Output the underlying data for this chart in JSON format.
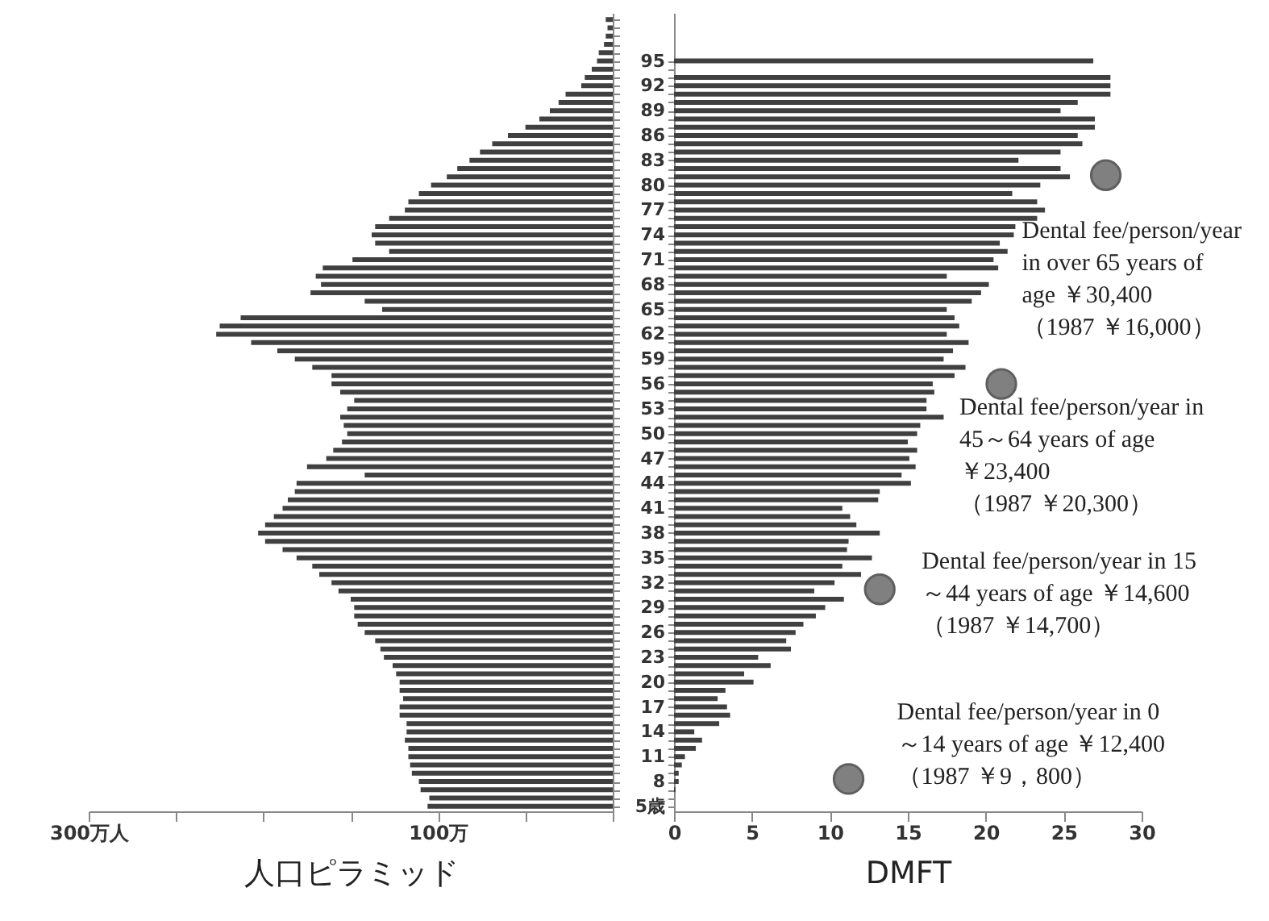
{
  "chart_data": [
    {
      "type": "bar",
      "orientation": "horizontal",
      "xlabel": "人口ピラミッド",
      "color": "#404040",
      "x": [
        5,
        6,
        7,
        8,
        9,
        10,
        11,
        12,
        13,
        14,
        15,
        16,
        17,
        18,
        19,
        20,
        21,
        22,
        23,
        24,
        25,
        26,
        27,
        28,
        29,
        30,
        31,
        32,
        33,
        34,
        35,
        36,
        37,
        38,
        39,
        40,
        41,
        42,
        43,
        44,
        45,
        46,
        47,
        48,
        49,
        50,
        51,
        52,
        53,
        54,
        55,
        56,
        57,
        58,
        59,
        60,
        61,
        62,
        63,
        64,
        65,
        66,
        67,
        68,
        69,
        70,
        71,
        72,
        73,
        74,
        75,
        76,
        77,
        78,
        79,
        80,
        81,
        82,
        83,
        84,
        85,
        86,
        87,
        88,
        89,
        90,
        91,
        92,
        93,
        94,
        95,
        96,
        97,
        98,
        99,
        100
      ],
      "values": [
        106,
        105,
        110,
        111,
        115,
        116,
        117,
        117,
        119,
        118,
        118,
        122,
        122,
        120,
        122,
        122,
        124,
        126,
        131,
        133,
        136,
        142,
        146,
        148,
        148,
        150,
        157,
        161,
        168,
        172,
        181,
        189,
        199,
        203,
        199,
        194,
        189,
        186,
        182,
        181,
        142,
        175,
        164,
        160,
        155,
        152,
        154,
        156,
        152,
        148,
        156,
        161,
        161,
        172,
        182,
        192,
        207,
        227,
        225,
        213,
        132,
        142,
        173,
        167,
        170,
        166,
        149,
        128,
        136,
        138,
        136,
        128,
        119,
        117,
        111,
        104,
        95,
        89,
        82,
        76,
        69,
        60,
        50,
        42,
        36,
        31,
        27,
        18,
        16,
        12,
        9,
        8,
        5,
        4,
        3,
        4
      ],
      "xlim": [
        300,
        0
      ],
      "xticks": [
        {
          "value": 300,
          "label": "300万人"
        },
        {
          "value": 250,
          "label": null
        },
        {
          "value": 200,
          "label": null
        },
        {
          "value": 150,
          "label": null
        },
        {
          "value": 100,
          "label": "100万"
        },
        {
          "value": 50,
          "label": null
        },
        {
          "value": 0,
          "label": null
        }
      ],
      "ylim": [
        4.4,
        100.8
      ],
      "yticks": [
        5,
        6,
        7,
        8,
        9,
        10,
        11,
        12,
        13,
        14,
        15,
        16,
        17,
        18,
        19,
        20,
        21,
        22,
        23,
        24,
        25,
        26,
        27,
        28,
        29,
        30,
        31,
        32,
        33,
        34,
        35,
        36,
        37,
        38,
        39,
        40,
        41,
        42,
        43,
        44,
        45,
        46,
        47,
        48,
        49,
        50,
        51,
        52,
        53,
        54,
        55,
        56,
        57,
        58,
        59,
        60,
        61,
        62,
        63,
        64,
        65,
        66,
        67,
        68,
        69,
        70,
        71,
        72,
        73,
        74,
        75,
        76,
        77,
        78,
        79,
        80,
        81,
        82,
        83,
        84,
        85,
        86,
        87,
        88,
        89,
        90,
        91,
        92,
        93,
        94,
        95,
        96,
        97,
        98,
        99,
        100
      ],
      "tick_labels": "x",
      "grid": false
    },
    {
      "type": "bar",
      "orientation": "horizontal",
      "xlabel": "DMFT",
      "x": [
        5,
        6,
        7,
        8,
        9,
        10,
        11,
        12,
        13,
        14,
        15,
        16,
        17,
        18,
        19,
        20,
        21,
        22,
        23,
        24,
        25,
        26,
        27,
        28,
        29,
        30,
        31,
        32,
        33,
        34,
        35,
        36,
        37,
        38,
        39,
        40,
        41,
        42,
        43,
        44,
        45,
        46,
        47,
        48,
        49,
        50,
        51,
        52,
        53,
        54,
        55,
        56,
        57,
        58,
        59,
        60,
        61,
        62,
        63,
        64,
        65,
        66,
        67,
        68,
        69,
        70,
        71,
        72,
        73,
        74,
        75,
        76,
        77,
        78,
        79,
        80,
        81,
        82,
        83,
        84,
        85,
        86,
        87,
        88,
        89,
        90,
        91,
        92,
        93,
        94,
        95
      ],
      "series": [
        {
          "type": "bar",
          "color": "#404040",
          "values": [
            0,
            0,
            0.1,
            0.3,
            0.3,
            0.5,
            0.7,
            1.4,
            1.8,
            1.3,
            2.9,
            3.6,
            3.4,
            2.8,
            3.3,
            5.1,
            4.5,
            6.2,
            5.4,
            7.5,
            7.2,
            7.8,
            8.3,
            9.1,
            9.7,
            10.9,
            9.0,
            10.3,
            12.0,
            10.8,
            12.7,
            11.1,
            11.2,
            13.2,
            11.7,
            11.3,
            10.8,
            13.1,
            13.2,
            15.2,
            14.6,
            15.5,
            15.1,
            15.6,
            15.0,
            15.6,
            15.8,
            17.3,
            16.2,
            16.2,
            16.7,
            16.6,
            18.0,
            18.7,
            17.3,
            17.9,
            18.9,
            17.5,
            18.3,
            18.0,
            17.5,
            19.1,
            19.7,
            20.2,
            17.5,
            20.8,
            20.5,
            21.4,
            20.9,
            21.8,
            21.9,
            23.3,
            23.8,
            23.3,
            21.7,
            23.5,
            25.4,
            24.8,
            22.1,
            24.8,
            26.2,
            25.9,
            27.0,
            27.0,
            24.8,
            25.9,
            28.0,
            28.0,
            28.0,
            null,
            26.9
          ]
        },
        {
          "type": "scatter",
          "color": "#808080",
          "marker": "circle",
          "x": [
            8.3,
            31.2,
            56.0,
            81.2
          ],
          "values": [
            11.2,
            13.2,
            21.0,
            27.7
          ]
        }
      ],
      "xlim": [
        0,
        30
      ],
      "xticks": [
        0,
        5,
        10,
        15,
        20,
        25,
        30
      ],
      "ylim": [
        4.4,
        100.8
      ],
      "yticks": [
        {
          "value": 5,
          "label": "5歳"
        },
        {
          "value": 6,
          "label": null
        },
        {
          "value": 7,
          "label": null
        },
        8,
        {
          "value": 9,
          "label": null
        },
        {
          "value": 10,
          "label": null
        },
        11,
        {
          "value": 12,
          "label": null
        },
        {
          "value": 13,
          "label": null
        },
        14,
        {
          "value": 15,
          "label": null
        },
        {
          "value": 16,
          "label": null
        },
        17,
        {
          "value": 18,
          "label": null
        },
        {
          "value": 19,
          "label": null
        },
        20,
        {
          "value": 21,
          "label": null
        },
        {
          "value": 22,
          "label": null
        },
        23,
        {
          "value": 24,
          "label": null
        },
        {
          "value": 25,
          "label": null
        },
        26,
        {
          "value": 27,
          "label": null
        },
        {
          "value": 28,
          "label": null
        },
        29,
        {
          "value": 30,
          "label": null
        },
        {
          "value": 31,
          "label": null
        },
        32,
        {
          "value": 33,
          "label": null
        },
        {
          "value": 34,
          "label": null
        },
        35,
        {
          "value": 36,
          "label": null
        },
        {
          "value": 37,
          "label": null
        },
        38,
        {
          "value": 39,
          "label": null
        },
        {
          "value": 40,
          "label": null
        },
        41,
        {
          "value": 42,
          "label": null
        },
        {
          "value": 43,
          "label": null
        },
        44,
        {
          "value": 45,
          "label": null
        },
        {
          "value": 46,
          "label": null
        },
        47,
        {
          "value": 48,
          "label": null
        },
        {
          "value": 49,
          "label": null
        },
        50,
        {
          "value": 51,
          "label": null
        },
        {
          "value": 52,
          "label": null
        },
        53,
        {
          "value": 54,
          "label": null
        },
        {
          "value": 55,
          "label": null
        },
        56,
        {
          "value": 57,
          "label": null
        },
        {
          "value": 58,
          "label": null
        },
        59,
        {
          "value": 60,
          "label": null
        },
        {
          "value": 61,
          "label": null
        },
        62,
        {
          "value": 63,
          "label": null
        },
        {
          "value": 64,
          "label": null
        },
        65,
        {
          "value": 66,
          "label": null
        },
        {
          "value": 67,
          "label": null
        },
        68,
        {
          "value": 69,
          "label": null
        },
        {
          "value": 70,
          "label": null
        },
        71,
        {
          "value": 72,
          "label": null
        },
        {
          "value": 73,
          "label": null
        },
        74,
        {
          "value": 75,
          "label": null
        },
        {
          "value": 76,
          "label": null
        },
        77,
        {
          "value": 78,
          "label": null
        },
        {
          "value": 79,
          "label": null
        },
        80,
        {
          "value": 81,
          "label": null
        },
        {
          "value": 82,
          "label": null
        },
        83,
        {
          "value": 84,
          "label": null
        },
        {
          "value": 85,
          "label": null
        },
        86,
        {
          "value": 87,
          "label": null
        },
        {
          "value": 88,
          "label": null
        },
        89,
        {
          "value": 90,
          "label": null
        },
        {
          "value": 91,
          "label": null
        },
        92,
        {
          "value": 93,
          "label": null
        },
        {
          "value": 94,
          "label": null
        },
        95
      ],
      "grid": false,
      "annotations": [
        {
          "text": "Dental fee/person/year in 0\n～14 years of age ￥12,400\n（1987 ￥9，800）",
          "x": 11.2,
          "y": 8.3
        },
        {
          "text": "Dental fee/person/year in 15\n～44 years of age ￥14,600\n（1987 ￥14,700）",
          "x": 13.2,
          "y": 31.2
        },
        {
          "text": "Dental fee/person/year in\n45～64 years of age\n￥23,400\n（1987 ￥20,300）",
          "x": 21.0,
          "y": 56.0
        },
        {
          "text": "Dental fee/person/year\nin over 65 years of\nage ￥30,400\n（1987 ￥16,000）",
          "x": 27.7,
          "y": 81.2
        }
      ]
    }
  ]
}
